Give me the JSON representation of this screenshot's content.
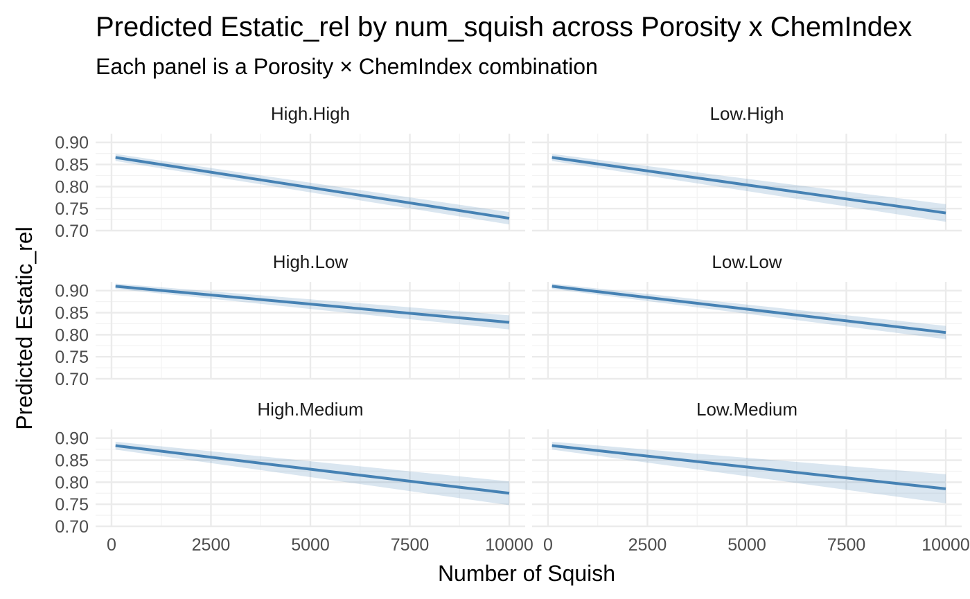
{
  "chart_data": {
    "type": "line",
    "title": "Predicted Estatic_rel by num_squish across Porosity x ChemIndex",
    "subtitle": "Each panel is a Porosity × ChemIndex combination",
    "xlabel": "Number of Squish",
    "ylabel": "Predicted Estatic_rel",
    "xlim": [
      -400,
      10400
    ],
    "ylim": [
      0.7,
      0.92
    ],
    "x_ticks": [
      "0",
      "2500",
      "5000",
      "7500",
      "10000"
    ],
    "y_ticks": [
      "0.70",
      "0.75",
      "0.80",
      "0.85",
      "0.90"
    ],
    "grid": true,
    "legend": "none",
    "line_color": "#4682b4",
    "facet_layout": {
      "rows": 3,
      "cols": 2
    },
    "panels": [
      {
        "label": "High.High",
        "x": [
          100,
          10000
        ],
        "y": [
          0.866,
          0.728
        ],
        "lower": [
          0.858,
          0.714
        ],
        "upper": [
          0.874,
          0.742
        ]
      },
      {
        "label": "Low.High",
        "x": [
          100,
          10000
        ],
        "y": [
          0.866,
          0.74
        ],
        "lower": [
          0.858,
          0.72
        ],
        "upper": [
          0.874,
          0.76
        ]
      },
      {
        "label": "High.Low",
        "x": [
          100,
          10000
        ],
        "y": [
          0.91,
          0.828
        ],
        "lower": [
          0.904,
          0.812
        ],
        "upper": [
          0.916,
          0.844
        ]
      },
      {
        "label": "Low.Low",
        "x": [
          100,
          10000
        ],
        "y": [
          0.91,
          0.805
        ],
        "lower": [
          0.904,
          0.79
        ],
        "upper": [
          0.916,
          0.82
        ]
      },
      {
        "label": "High.Medium",
        "x": [
          100,
          10000
        ],
        "y": [
          0.883,
          0.775
        ],
        "lower": [
          0.874,
          0.748
        ],
        "upper": [
          0.892,
          0.802
        ]
      },
      {
        "label": "Low.Medium",
        "x": [
          100,
          10000
        ],
        "y": [
          0.883,
          0.785
        ],
        "lower": [
          0.874,
          0.752
        ],
        "upper": [
          0.892,
          0.818
        ]
      }
    ]
  }
}
